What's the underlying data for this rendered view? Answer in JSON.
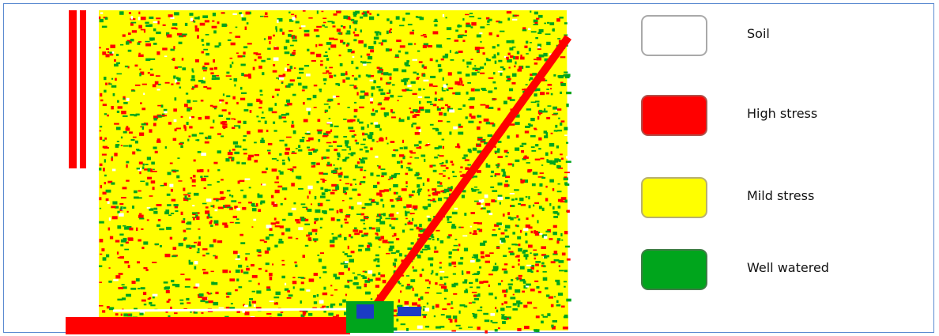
{
  "map": {
    "colors": {
      "soil": "#ffffff",
      "high_stress": "#ff0000",
      "mild_stress": "#ffff00",
      "well_watered": "#00a51c",
      "water": "#1b3cc4"
    }
  },
  "legend": {
    "items": [
      {
        "label": "Soil",
        "color": "#ffffff",
        "border": "#a9a9a9"
      },
      {
        "label": "High stress",
        "color": "#ff0000",
        "border": "#b0504a"
      },
      {
        "label": "Mild stress",
        "color": "#ffff00",
        "border": "#b8b070"
      },
      {
        "label": "Well watered",
        "color": "#00a51c",
        "border": "#3f7d46"
      }
    ]
  }
}
